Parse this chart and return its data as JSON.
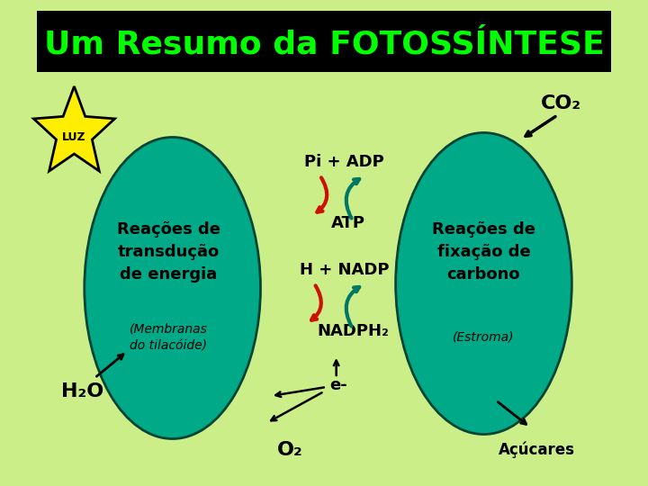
{
  "title": "Um Resumo da FOTOSSÍNTESE",
  "title_color": "#00ff00",
  "title_bg": "#000000",
  "bg_color": "#ccee88",
  "ellipse1_color": "#00aa88",
  "ellipse2_color": "#00aa88",
  "star_color": "#ffee00",
  "star_edge": "#000000",
  "star_text": "LUZ",
  "text_reacoes1": "Reações de\ntransdução\nde energia",
  "text_membranas": "(Membranas\ndo tilacóide)",
  "text_reacoes2": "Reações de\nfixação de\ncarbono",
  "text_estroma": "(Estroma)",
  "text_pi_adp": "Pi + ADP",
  "text_atp": "ATP",
  "text_h_nadp": "H + NADP",
  "text_nadph2": "NADPH₂",
  "text_co2": "CO₂",
  "text_h2o": "H₂O",
  "text_e": "e-",
  "text_o2": "O₂",
  "text_acucares": "Açúcares",
  "arrow_color_red": "#cc1100",
  "arrow_color_teal": "#007766"
}
